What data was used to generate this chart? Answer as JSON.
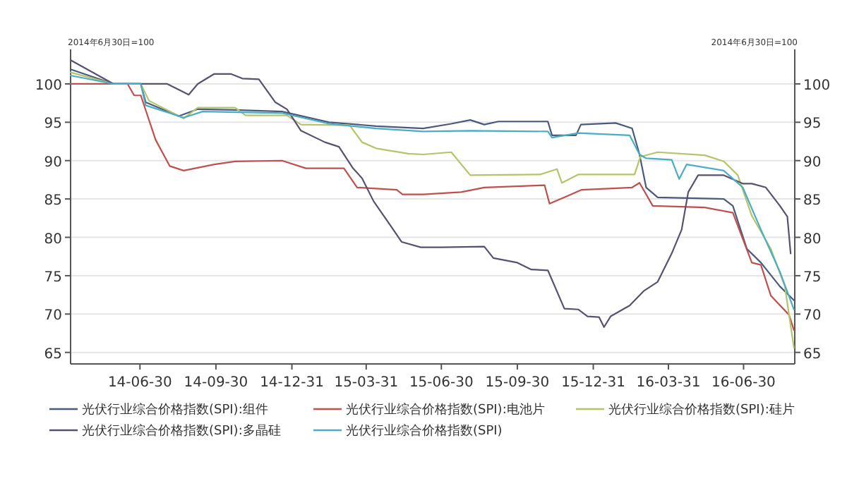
{
  "chart_data": {
    "type": "line",
    "ylabel": "2014年6月30日=100",
    "y2label": "2014年6月30日=100",
    "xlim": [
      "2014-04-07",
      "2016-08-31"
    ],
    "xticks": [
      {
        "value": "2014-06-30",
        "label": "14-06-30"
      },
      {
        "value": "2014-09-30",
        "label": "14-09-30"
      },
      {
        "value": "2014-12-31",
        "label": "14-12-31"
      },
      {
        "value": "2015-03-31",
        "label": "15-03-31"
      },
      {
        "value": "2015-06-30",
        "label": "15-06-30"
      },
      {
        "value": "2015-09-30",
        "label": "15-09-30"
      },
      {
        "value": "2015-12-31",
        "label": "15-12-31"
      },
      {
        "value": "2016-03-31",
        "label": "16-03-31"
      },
      {
        "value": "2016-06-30",
        "label": "16-06-30"
      }
    ],
    "ylim": [
      63.5,
      104.5
    ],
    "yticks": [
      65,
      70,
      75,
      80,
      85,
      90,
      95,
      100
    ],
    "y2lim": [
      63.5,
      104.5
    ],
    "y2ticks": [
      65,
      70,
      75,
      80,
      85,
      90,
      95,
      100
    ],
    "grid": "y",
    "legend": "bottom",
    "line_style": "solid",
    "series": [
      {
        "name": "光伏行业综合价格指数(SPI):组件",
        "color": "#4a5a7a",
        "x": [
          "2014-04-07",
          "2014-05-29",
          "2014-07-01",
          "2014-07-07",
          "2014-08-16",
          "2014-09-08",
          "2014-10-23",
          "2014-12-19",
          "2015-02-14",
          "2015-04-12",
          "2015-06-08",
          "2015-07-12",
          "2015-08-04",
          "2015-08-21",
          "2015-09-07",
          "2015-11-06",
          "2015-11-11",
          "2015-12-10",
          "2015-12-16",
          "2016-01-27",
          "2016-02-16",
          "2016-02-25",
          "2016-03-04",
          "2016-03-18",
          "2016-06-06",
          "2016-06-17",
          "2016-07-04",
          "2016-07-21",
          "2016-08-13",
          "2016-08-30"
        ],
        "values": [
          101.9,
          100,
          100,
          97.6,
          95.8,
          96.7,
          96.6,
          96.4,
          95.0,
          94.5,
          94.2,
          94.8,
          95.3,
          94.7,
          95.1,
          95.1,
          93.3,
          93.3,
          94.7,
          94.9,
          94.2,
          90.8,
          86.5,
          85.2,
          85.0,
          84.1,
          78.5,
          76.7,
          73.6,
          71.8
        ]
      },
      {
        "name": "光伏行业综合价格指数(SPI):电池片",
        "color": "#c0504d",
        "x": [
          "2014-04-07",
          "2014-06-15",
          "2014-06-23",
          "2014-07-01",
          "2014-07-19",
          "2014-08-05",
          "2014-08-22",
          "2014-09-28",
          "2014-10-23",
          "2014-12-19",
          "2015-01-17",
          "2015-03-04",
          "2015-03-20",
          "2015-05-07",
          "2015-05-14",
          "2015-06-08",
          "2015-07-24",
          "2015-08-21",
          "2015-11-02",
          "2015-11-08",
          "2015-11-28",
          "2015-12-17",
          "2016-02-16",
          "2016-02-25",
          "2016-03-12",
          "2016-05-14",
          "2016-06-17",
          "2016-07-10",
          "2016-07-21",
          "2016-08-02",
          "2016-08-24",
          "2016-08-30"
        ],
        "values": [
          100,
          100,
          98.5,
          98.5,
          92.7,
          89.3,
          88.7,
          89.5,
          89.9,
          90.0,
          89.0,
          89.0,
          86.5,
          86.2,
          85.6,
          85.6,
          85.9,
          86.5,
          86.8,
          84.4,
          85.3,
          86.2,
          86.5,
          87.1,
          84.1,
          83.9,
          83.2,
          76.7,
          76.4,
          72.4,
          69.9,
          67.9
        ]
      },
      {
        "name": "光伏行业综合价格指数(SPI):硅片",
        "color": "#b4c46a",
        "x": [
          "2014-04-07",
          "2014-05-29",
          "2014-07-01",
          "2014-07-11",
          "2014-08-22",
          "2014-09-08",
          "2014-10-23",
          "2014-11-05",
          "2014-12-25",
          "2015-01-11",
          "2015-03-11",
          "2015-03-26",
          "2015-04-12",
          "2015-05-21",
          "2015-06-08",
          "2015-07-12",
          "2015-08-04",
          "2015-10-28",
          "2015-11-17",
          "2015-11-23",
          "2015-12-13",
          "2016-02-19",
          "2016-02-26",
          "2016-03-18",
          "2016-05-14",
          "2016-06-06",
          "2016-06-23",
          "2016-07-10",
          "2016-08-02",
          "2016-08-19",
          "2016-08-30"
        ],
        "values": [
          101.5,
          100,
          100,
          97.8,
          95.5,
          96.9,
          96.9,
          95.9,
          95.9,
          94.7,
          94.6,
          92.4,
          91.6,
          90.9,
          90.8,
          91.1,
          88.1,
          88.2,
          88.9,
          87.1,
          88.2,
          88.2,
          90.5,
          91.1,
          90.7,
          89.9,
          88.1,
          82.8,
          78.5,
          73.6,
          65.6
        ]
      },
      {
        "name": "光伏行业综合价格指数(SPI):多晶硅",
        "color": "#5a5070",
        "x": [
          "2014-04-07",
          "2014-05-29",
          "2014-08-02",
          "2014-08-28",
          "2014-09-08",
          "2014-09-28",
          "2014-10-18",
          "2014-11-01",
          "2014-11-21",
          "2014-12-11",
          "2014-12-25",
          "2015-01-11",
          "2015-02-09",
          "2015-02-26",
          "2015-03-15",
          "2015-03-26",
          "2015-04-09",
          "2015-04-29",
          "2015-05-13",
          "2015-06-05",
          "2015-07-01",
          "2015-08-21",
          "2015-09-01",
          "2015-09-30",
          "2015-10-17",
          "2015-11-06",
          "2015-11-26",
          "2015-12-13",
          "2015-12-24",
          "2016-01-07",
          "2016-01-13",
          "2016-01-21",
          "2016-02-13",
          "2016-03-01",
          "2016-03-18",
          "2016-04-04",
          "2016-04-16",
          "2016-04-24",
          "2016-05-06",
          "2016-06-06",
          "2016-06-29",
          "2016-07-10",
          "2016-07-27",
          "2016-08-13",
          "2016-08-22",
          "2016-08-26"
        ],
        "values": [
          103.1,
          100,
          100,
          98.6,
          100,
          101.3,
          101.3,
          100.7,
          100.6,
          97.6,
          96.7,
          93.9,
          92.4,
          91.8,
          89.0,
          87.7,
          84.7,
          81.6,
          79.4,
          78.7,
          78.7,
          78.8,
          77.3,
          76.7,
          75.8,
          75.7,
          70.7,
          70.6,
          69.7,
          69.6,
          68.3,
          69.7,
          71.1,
          73.0,
          74.2,
          77.9,
          81.0,
          85.9,
          88.1,
          88.1,
          87.0,
          87.0,
          86.5,
          84.1,
          82.7,
          77.9
        ]
      },
      {
        "name": "光伏行业综合价格指数(SPI)",
        "color": "#4bacc6",
        "x": [
          "2014-04-07",
          "2014-05-29",
          "2014-07-01",
          "2014-07-07",
          "2014-08-22",
          "2014-09-14",
          "2014-12-19",
          "2015-02-14",
          "2015-04-12",
          "2015-06-08",
          "2015-08-04",
          "2015-11-06",
          "2015-11-11",
          "2015-12-13",
          "2016-02-13",
          "2016-02-25",
          "2016-03-04",
          "2016-04-04",
          "2016-04-13",
          "2016-04-22",
          "2016-06-06",
          "2016-06-29",
          "2016-07-21",
          "2016-08-13",
          "2016-08-30"
        ],
        "values": [
          101.1,
          100,
          100,
          97.2,
          95.6,
          96.4,
          96.2,
          94.8,
          94.2,
          93.8,
          93.9,
          93.8,
          93.0,
          93.6,
          93.3,
          90.8,
          90.3,
          90.1,
          87.6,
          89.5,
          88.7,
          86.5,
          81.0,
          75.5,
          70.6
        ]
      }
    ]
  }
}
